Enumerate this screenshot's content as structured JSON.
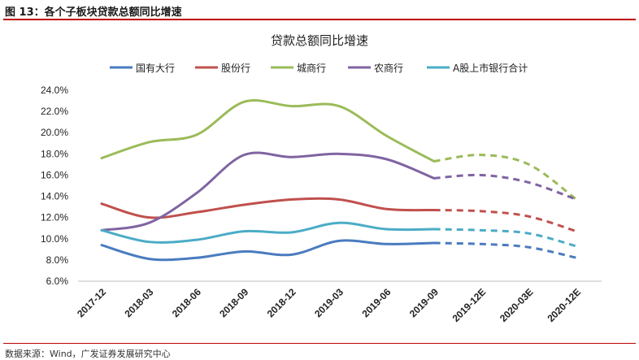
{
  "figure_label": "图 13：各个子板块贷款总额同比增速",
  "source": "数据来源：Wind，广发证券发展研究中心",
  "chart_data": {
    "type": "line",
    "title": "贷款总额同比增速",
    "categories": [
      "2017-12",
      "2018-03",
      "2018-06",
      "2018-09",
      "2018-12",
      "2019-03",
      "2019-06",
      "2019-09",
      "2019-12E",
      "2020-03E",
      "2020-12E"
    ],
    "estimate_start_index": 7,
    "ylim": [
      6,
      24
    ],
    "yticks": [
      "6.0%",
      "8.0%",
      "10.0%",
      "12.0%",
      "14.0%",
      "16.0%",
      "18.0%",
      "20.0%",
      "22.0%",
      "24.0%"
    ],
    "grid": false,
    "legend_position": "top",
    "series": [
      {
        "name": "国有大行",
        "color": "#4a7bbf",
        "values": [
          9.4,
          8.1,
          8.2,
          8.8,
          8.5,
          9.8,
          9.5,
          9.6,
          9.5,
          9.2,
          8.2
        ]
      },
      {
        "name": "股份行",
        "color": "#c0504d",
        "values": [
          13.3,
          12.0,
          12.5,
          13.2,
          13.7,
          13.7,
          12.8,
          12.7,
          12.6,
          12.1,
          10.7
        ]
      },
      {
        "name": "城商行",
        "color": "#9bbb59",
        "values": [
          17.6,
          19.1,
          19.8,
          22.9,
          22.5,
          22.5,
          19.7,
          17.3,
          17.9,
          17.0,
          13.7
        ]
      },
      {
        "name": "农商行",
        "color": "#8064a2",
        "values": [
          10.8,
          11.5,
          14.3,
          17.9,
          17.7,
          18.0,
          17.5,
          15.7,
          16.0,
          15.3,
          13.7
        ]
      },
      {
        "name": "A股上市银行合计",
        "color": "#4bacc6",
        "values": [
          10.8,
          9.7,
          9.9,
          10.7,
          10.6,
          11.5,
          10.9,
          10.9,
          10.8,
          10.5,
          9.3
        ]
      }
    ]
  }
}
